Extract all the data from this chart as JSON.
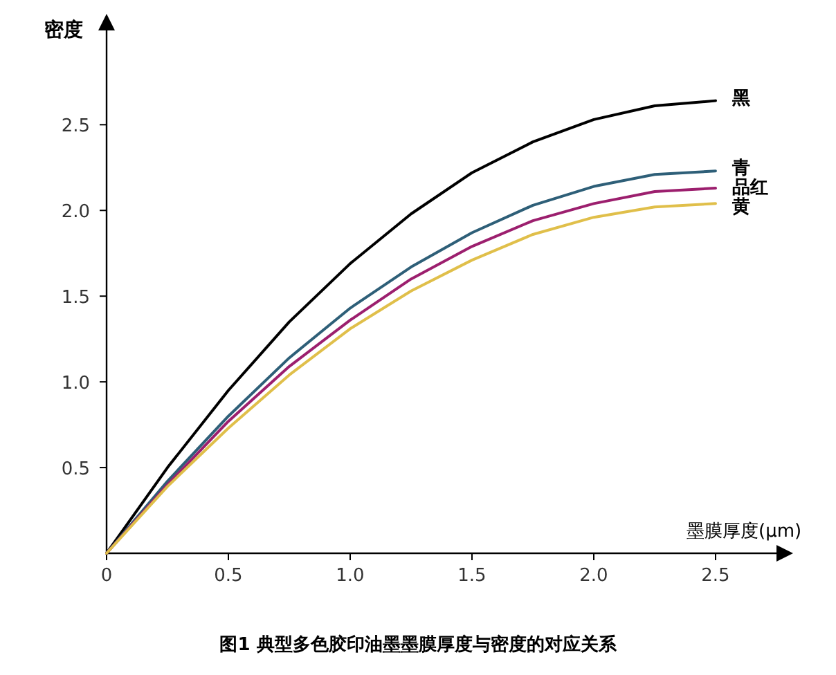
{
  "chart_data": {
    "type": "line",
    "xlabel": "墨膜厚度(μm)",
    "ylabel": "密度",
    "x": [
      0,
      0.25,
      0.5,
      0.75,
      1,
      1.25,
      1.5,
      1.75,
      2,
      2.25,
      2.5
    ],
    "series": [
      {
        "name": "黑",
        "color": "#000000",
        "values": [
          0,
          0.5,
          0.95,
          1.35,
          1.69,
          1.98,
          2.22,
          2.4,
          2.53,
          2.61,
          2.64
        ]
      },
      {
        "name": "青",
        "color": "#2e5f78",
        "values": [
          0,
          0.42,
          0.8,
          1.14,
          1.43,
          1.67,
          1.87,
          2.03,
          2.14,
          2.21,
          2.23
        ]
      },
      {
        "name": "品红",
        "color": "#9c1f6e",
        "values": [
          0,
          0.4,
          0.77,
          1.09,
          1.36,
          1.6,
          1.79,
          1.94,
          2.04,
          2.11,
          2.13
        ]
      },
      {
        "name": "黄",
        "color": "#e0bf4a",
        "values": [
          0,
          0.39,
          0.73,
          1.04,
          1.31,
          1.53,
          1.71,
          1.86,
          1.96,
          2.02,
          2.04
        ]
      }
    ],
    "xlim": [
      0,
      2.75
    ],
    "ylim": [
      0,
      3.05
    ],
    "xticks": [
      0,
      {
        "value": 0.5,
        "label": "0.5"
      },
      {
        "value": 1,
        "label": "1.0"
      },
      {
        "value": 1.5,
        "label": "1.5"
      },
      {
        "value": 2,
        "label": "2.0"
      },
      {
        "value": 2.5,
        "label": "2.5"
      }
    ],
    "yticks": [
      {
        "value": 0.5,
        "label": "0.5"
      },
      {
        "value": 1,
        "label": "1.0"
      },
      {
        "value": 1.5,
        "label": "1.5"
      },
      {
        "value": 2,
        "label": "2.0"
      },
      {
        "value": 2.5,
        "label": "2.5"
      }
    ],
    "grid": false,
    "legend": false,
    "marker": "none",
    "line_style": "solid",
    "annotations": [
      "图1 典型多色胶印油墨墨膜厚度与密度的对应关系"
    ]
  }
}
